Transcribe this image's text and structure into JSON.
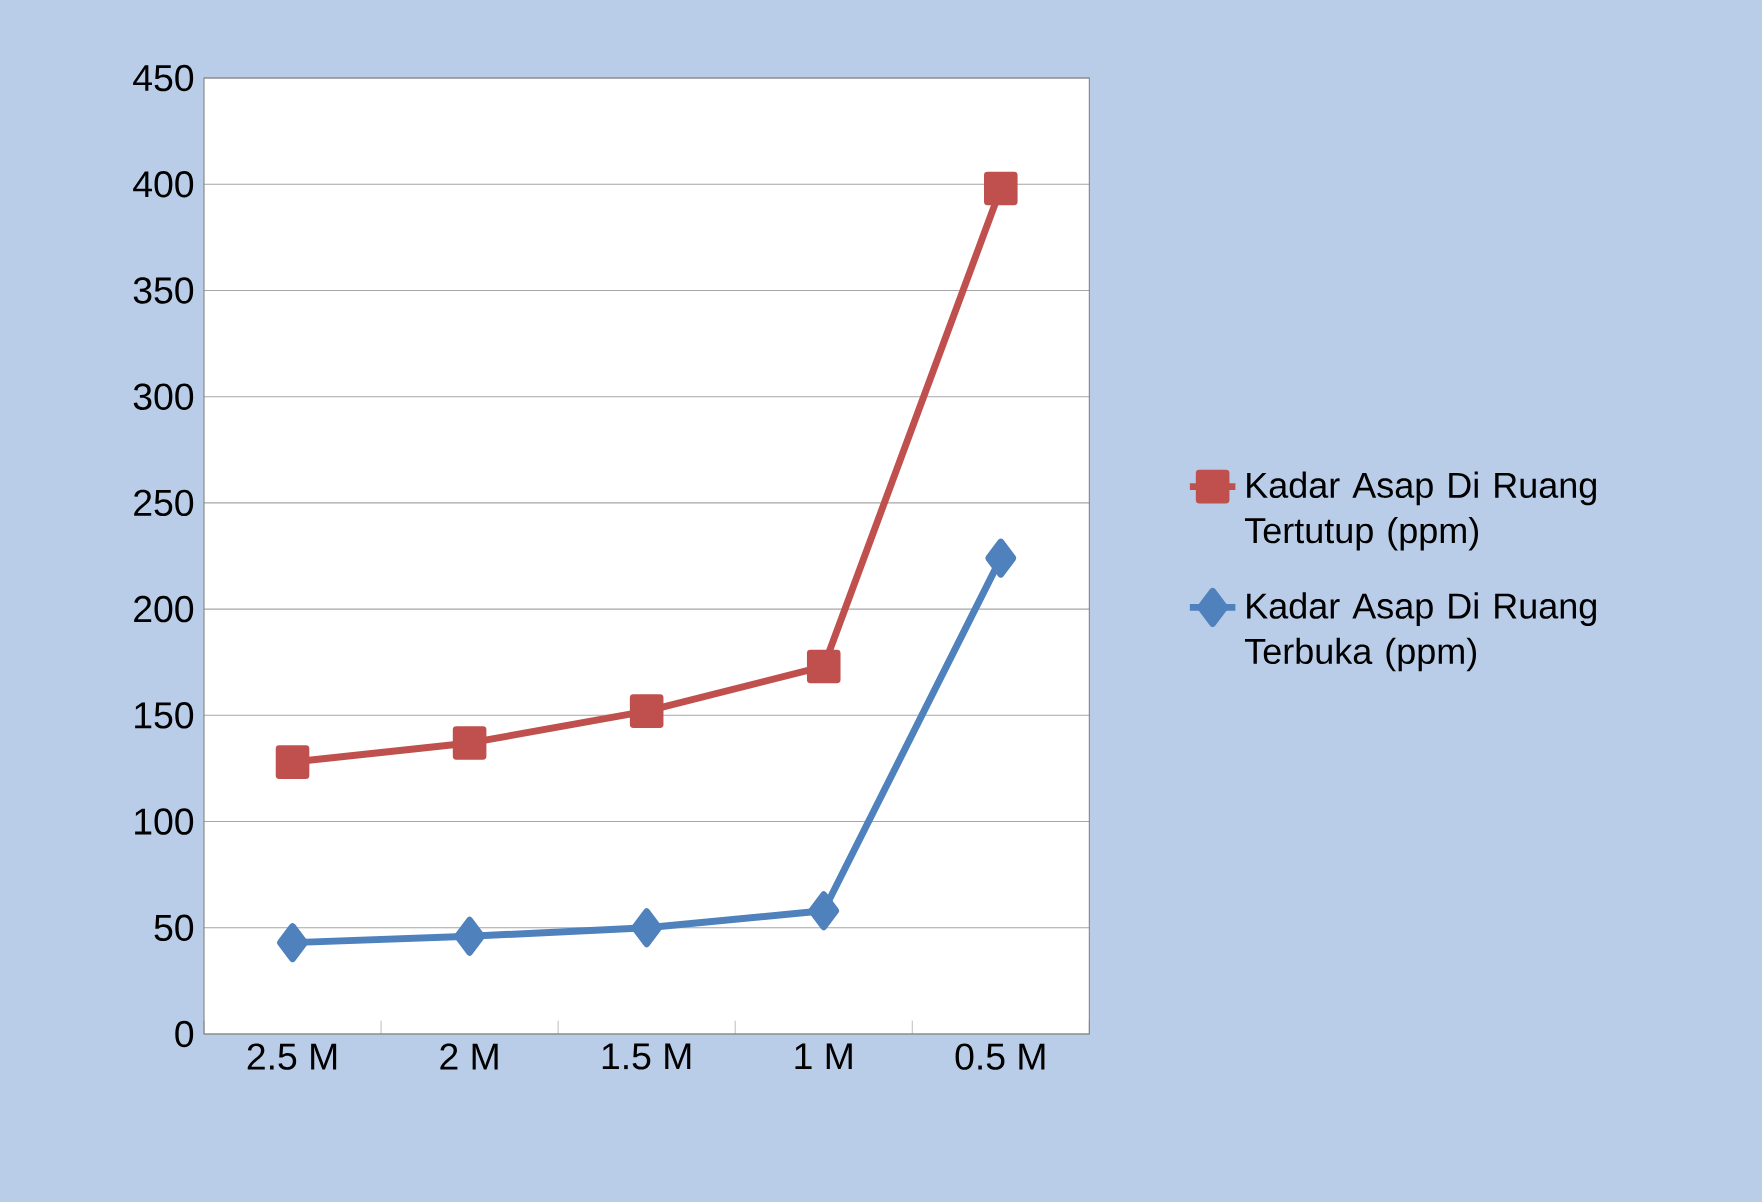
{
  "chart_data": {
    "type": "line",
    "categories": [
      "2.5 M",
      "2 M",
      "1.5 M",
      "1 M",
      "0.5 M"
    ],
    "series": [
      {
        "name": "Kadar Asap Di Ruang Tertutup (ppm)",
        "color": "#c0504d",
        "marker": "square",
        "values": [
          128,
          137,
          152,
          173,
          398
        ]
      },
      {
        "name": "Kadar Asap Di Ruang Terbuka (ppm)",
        "color": "#4f81bd",
        "marker": "diamond",
        "values": [
          43,
          46,
          50,
          58,
          224
        ]
      }
    ],
    "ylim": [
      0,
      450
    ],
    "yticks": [
      0,
      50,
      100,
      150,
      200,
      250,
      300,
      350,
      400,
      450
    ],
    "grid": "y",
    "legend": "right"
  }
}
